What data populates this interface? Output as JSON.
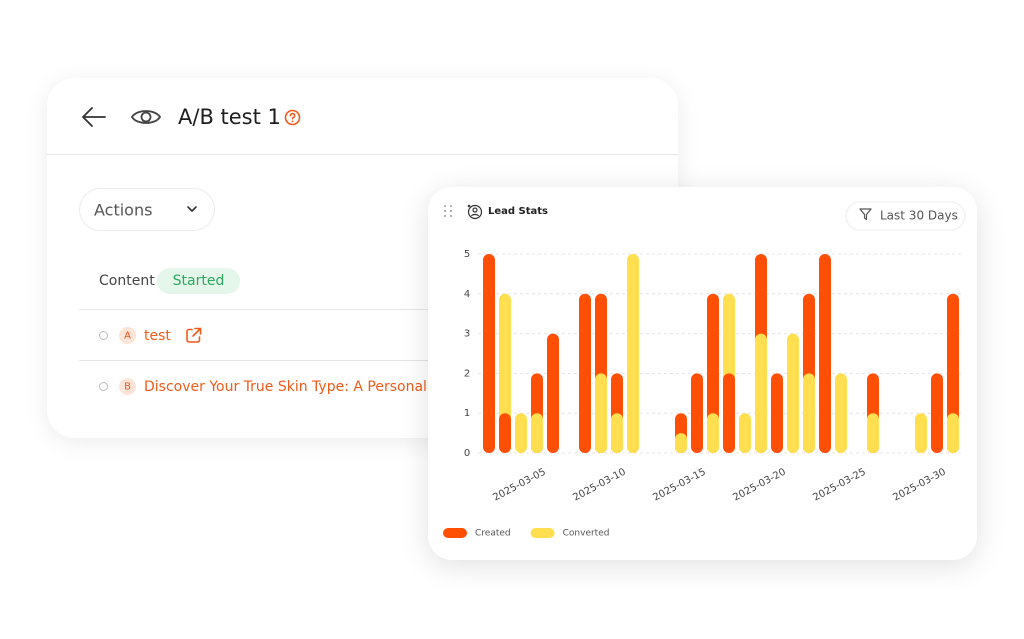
{
  "header": {
    "title": "A/B test 1"
  },
  "actions": "Actions",
  "content_label": "Content",
  "status": "Started",
  "variants": [
    {
      "letter": "A",
      "name": "test"
    },
    {
      "letter": "B",
      "name": "Discover Your True Skin Type: A Personalize..."
    }
  ],
  "chart_data": {
    "type": "bar",
    "title": "Lead Stats",
    "filter": "Last 30 Days",
    "categories": [
      null,
      null,
      null,
      null,
      "2025-03-05",
      null,
      null,
      null,
      null,
      "2025-03-10",
      null,
      null,
      null,
      null,
      "2025-03-15",
      null,
      null,
      null,
      null,
      "2025-03-20",
      null,
      null,
      null,
      null,
      "2025-03-25",
      null,
      null,
      null,
      null,
      "2025-03-30"
    ],
    "series": [
      {
        "name": "Created",
        "color": "#ff4f05",
        "values": [
          5,
          1,
          0,
          2,
          3,
          0,
          4,
          4,
          2,
          0,
          0,
          0,
          1,
          2,
          4,
          2,
          0,
          5,
          2,
          0,
          4,
          5,
          0,
          0,
          2,
          0,
          0,
          0,
          2,
          4
        ]
      },
      {
        "name": "Converted",
        "color": "#ffde4f",
        "values": [
          0,
          4,
          1,
          1,
          0,
          0,
          0,
          2,
          1,
          5,
          0,
          0,
          0.5,
          0,
          1,
          4,
          1,
          3,
          0,
          3,
          2,
          0,
          2,
          0,
          1,
          0,
          0,
          1,
          0,
          1
        ]
      }
    ],
    "ylim": [
      0,
      5
    ],
    "yticks": [
      0,
      1,
      2,
      3,
      4,
      5
    ],
    "grid": true,
    "legend": "bottom-left"
  }
}
